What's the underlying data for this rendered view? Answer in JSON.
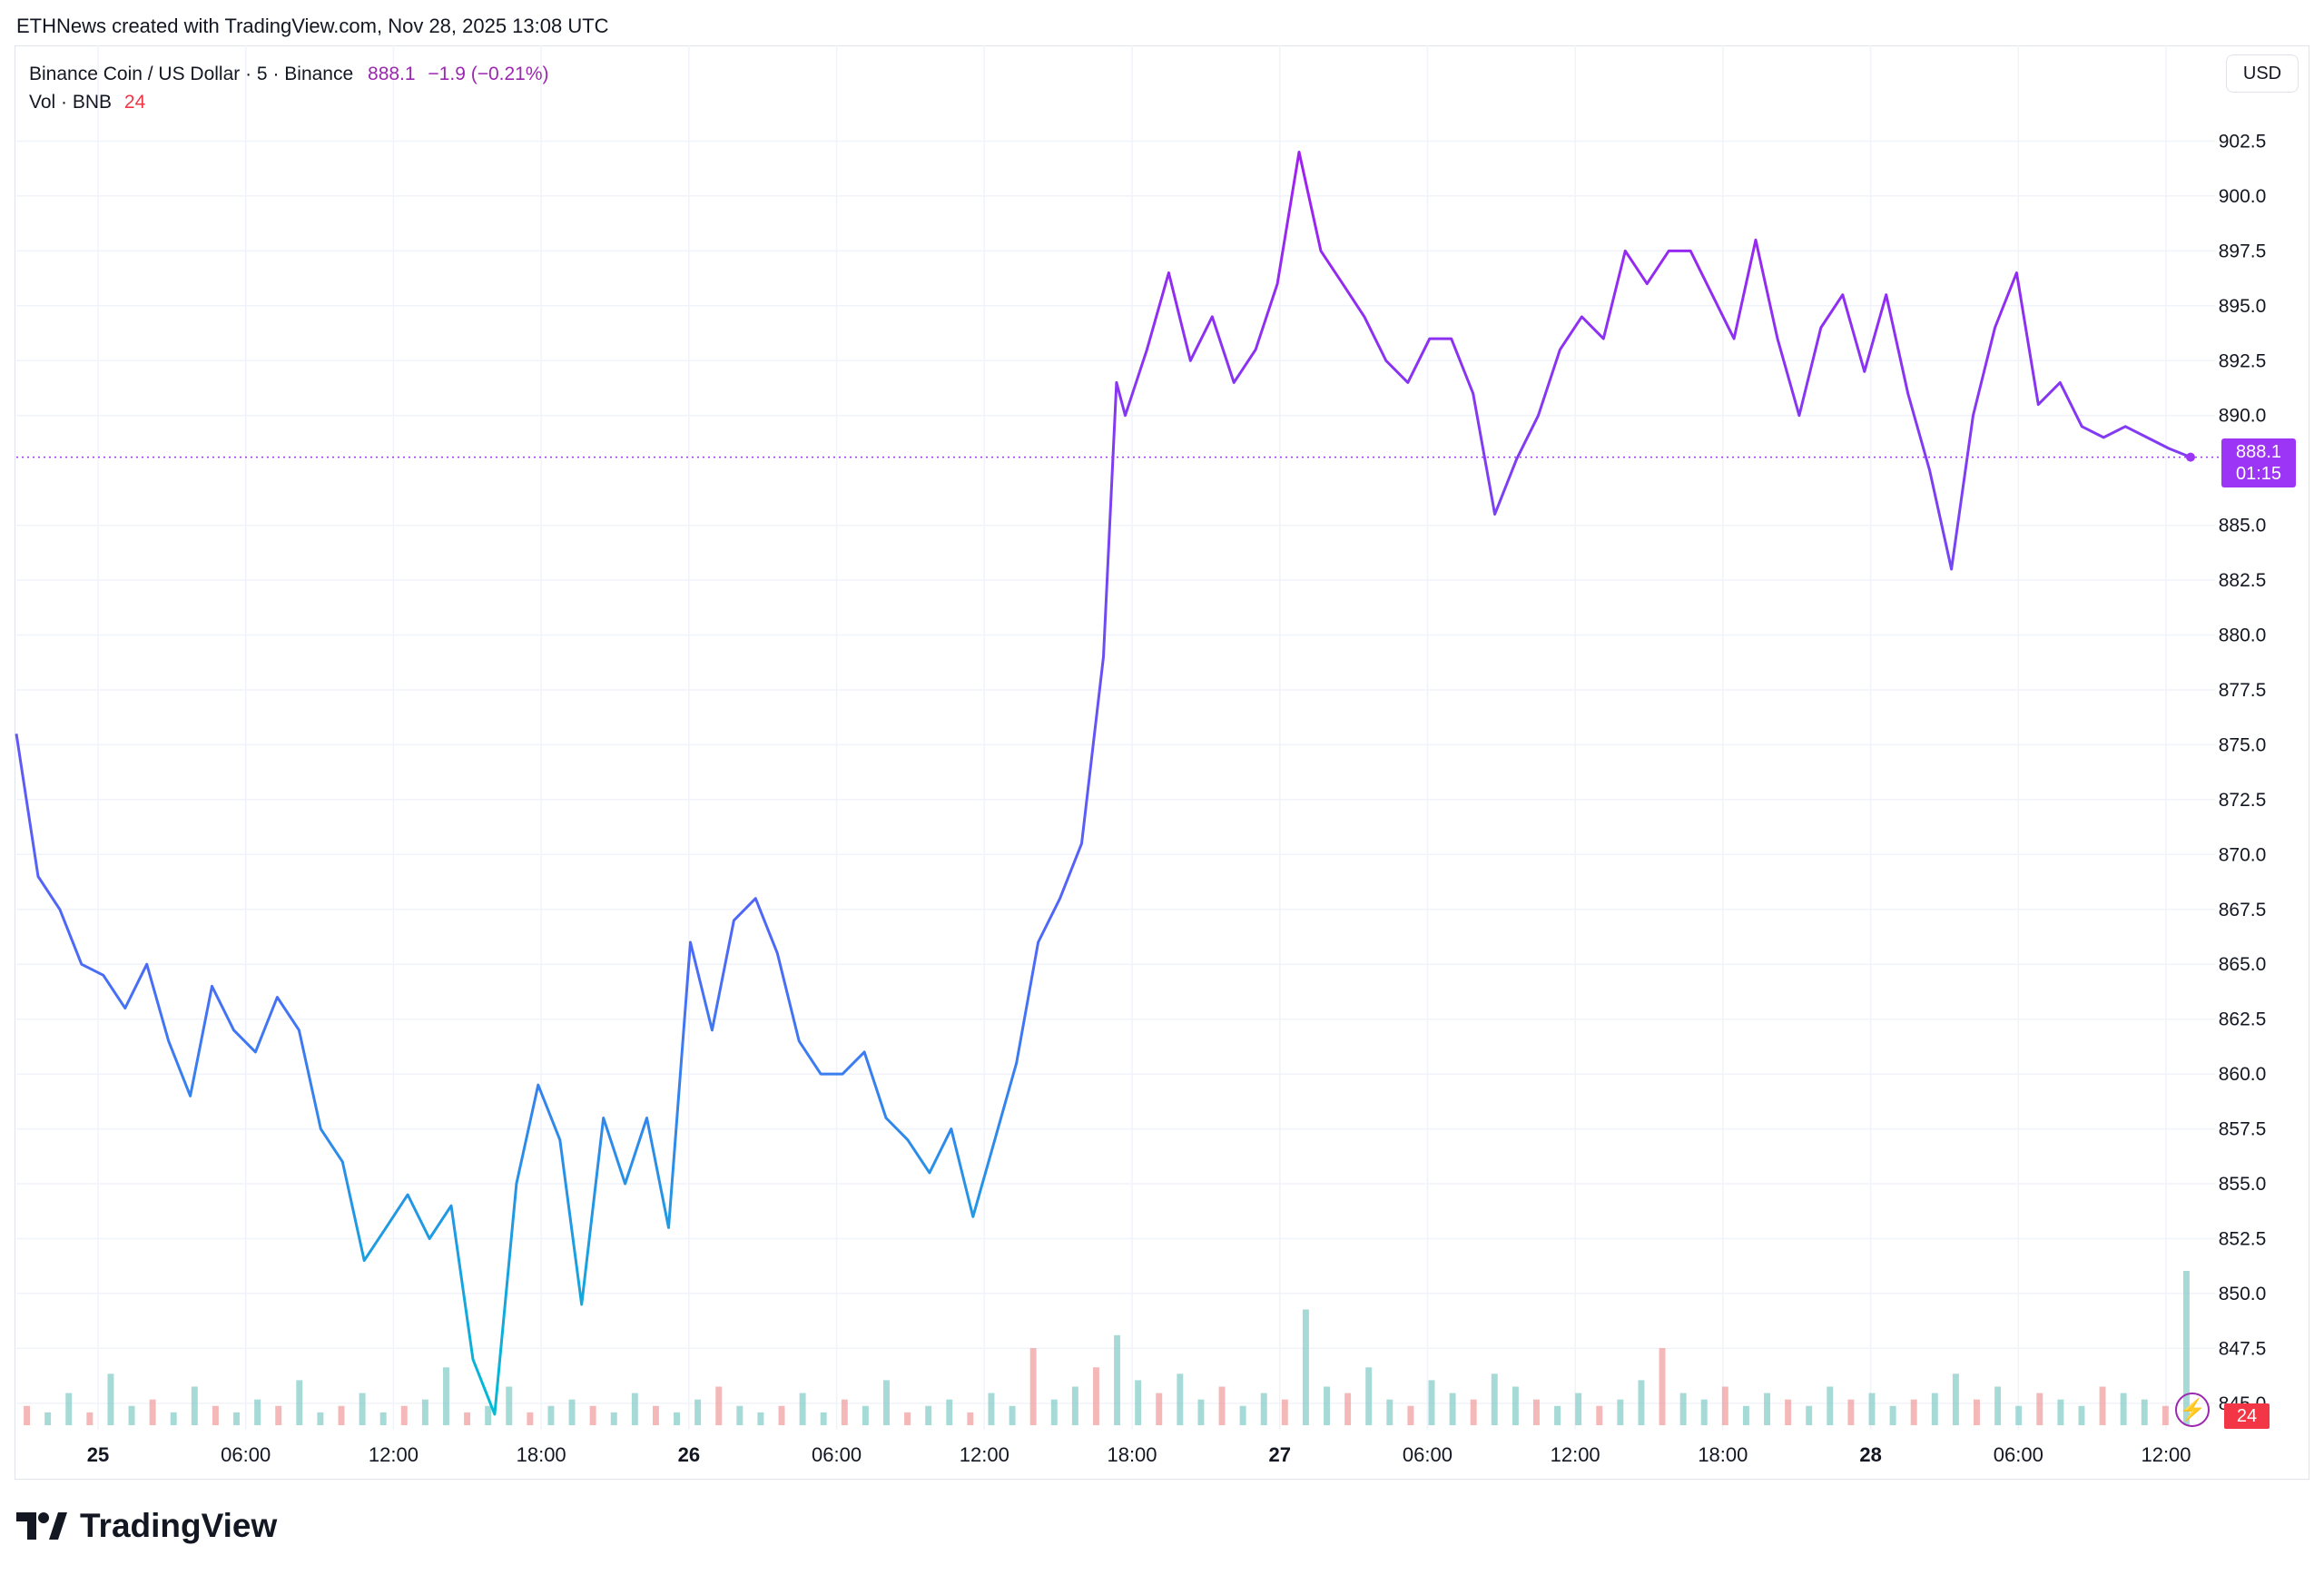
{
  "header": {
    "credit": "ETHNews created with TradingView.com, Nov 28, 2025 13:08 UTC"
  },
  "legend": {
    "symbol": "Binance Coin / US Dollar · 5 · Binance",
    "last": "888.1",
    "change": "−1.9 (−0.21%)",
    "volume_label": "Vol · BNB",
    "volume_value": "24"
  },
  "toolbar": {
    "currency_label": "USD"
  },
  "price_badge": {
    "price": "888.1",
    "countdown": "01:15"
  },
  "volume_badge": "24",
  "brand": {
    "name": "TradingView",
    "logo_icon": "tradingview-logo-icon"
  },
  "icons": {
    "alert": "lightning-icon"
  },
  "colors": {
    "line_start": "#00bcd4",
    "line_mid": "#4a6cf7",
    "line_end": "#a020f0",
    "vol_up": "#26a69a",
    "vol_down": "#ef5350",
    "badge": "#9c35f5"
  },
  "chart_data": {
    "type": "line",
    "series": [
      {
        "values_time_fraction": [
          0.0,
          0.01,
          0.02,
          0.03,
          0.04,
          0.05,
          0.06,
          0.07,
          0.08,
          0.09,
          0.1,
          0.11,
          0.12,
          0.13,
          0.14,
          0.15,
          0.16,
          0.17,
          0.18,
          0.19,
          0.2,
          0.21,
          0.22,
          0.23,
          0.24,
          0.25,
          0.26,
          0.27,
          0.28,
          0.29,
          0.3,
          0.31,
          0.32,
          0.33,
          0.34,
          0.35,
          0.36,
          0.37,
          0.38,
          0.39,
          0.4,
          0.41,
          0.42,
          0.43,
          0.44,
          0.45,
          0.46,
          0.47,
          0.48,
          0.49,
          0.5,
          0.506,
          0.51,
          0.52,
          0.53,
          0.54,
          0.55,
          0.56,
          0.57,
          0.58,
          0.59,
          0.6,
          0.61,
          0.62,
          0.63,
          0.64,
          0.65,
          0.66,
          0.67,
          0.68,
          0.69,
          0.7,
          0.71,
          0.72,
          0.73,
          0.74,
          0.75,
          0.76,
          0.77,
          0.78,
          0.79,
          0.8,
          0.81,
          0.82,
          0.83,
          0.84,
          0.85,
          0.86,
          0.87,
          0.88,
          0.89,
          0.9,
          0.91,
          0.92,
          0.93,
          0.94,
          0.95,
          0.96,
          0.97,
          0.98,
          0.99,
          1.0
        ],
        "values": [
          875.5,
          869.0,
          867.5,
          865.0,
          864.5,
          863.0,
          865.0,
          861.5,
          859.0,
          864.0,
          862.0,
          861.0,
          863.5,
          862.0,
          857.5,
          856.0,
          851.5,
          853.0,
          854.5,
          852.5,
          854.0,
          847.0,
          844.5,
          855.0,
          859.5,
          857.0,
          849.5,
          858.0,
          855.0,
          858.0,
          853.0,
          866.0,
          862.0,
          867.0,
          868.0,
          865.5,
          861.5,
          860.0,
          860.0,
          861.0,
          858.0,
          857.0,
          855.5,
          857.5,
          853.5,
          857.0,
          860.5,
          866.0,
          868.0,
          870.5,
          879.0,
          891.5,
          890.0,
          893.0,
          896.5,
          892.5,
          894.5,
          891.5,
          893.0,
          896.0,
          902.0,
          897.5,
          896.0,
          894.5,
          892.5,
          891.5,
          893.5,
          893.5,
          891.0,
          885.5,
          888.0,
          890.0,
          893.0,
          894.5,
          893.5,
          897.5,
          896.0,
          897.5,
          897.5,
          895.5,
          893.5,
          898.0,
          893.5,
          890.0,
          894.0,
          895.5,
          892.0,
          895.5,
          891.0,
          887.5,
          883.0,
          890.0,
          894.0,
          896.5,
          890.5,
          891.5,
          889.5,
          889.0,
          889.5,
          889.0,
          888.5,
          888.1
        ]
      }
    ],
    "x_tick_labels": [
      "25",
      "06:00",
      "12:00",
      "18:00",
      "26",
      "06:00",
      "12:00",
      "18:00",
      "27",
      "06:00",
      "12:00",
      "18:00",
      "28",
      "06:00",
      "12:00"
    ],
    "y_tick_labels": [
      "902.5",
      "900.0",
      "897.5",
      "895.0",
      "892.5",
      "890.0",
      "885.0",
      "882.5",
      "880.0",
      "877.5",
      "875.0",
      "872.5",
      "870.0",
      "867.5",
      "865.0",
      "862.5",
      "860.0",
      "857.5",
      "855.0",
      "852.5",
      "850.0",
      "847.5",
      "845.0"
    ],
    "ylim": [
      844,
      905
    ],
    "last_price": 888.1,
    "grid": true,
    "volume": {
      "unit": "BNB",
      "bars": [
        3,
        2,
        5,
        2,
        8,
        3,
        4,
        2,
        6,
        3,
        2,
        4,
        3,
        7,
        2,
        3,
        5,
        2,
        3,
        4,
        9,
        2,
        3,
        6,
        2,
        3,
        4,
        3,
        2,
        5,
        3,
        2,
        4,
        6,
        3,
        2,
        3,
        5,
        2,
        4,
        3,
        7,
        2,
        3,
        4,
        2,
        5,
        3,
        12,
        4,
        6,
        9,
        14,
        7,
        5,
        8,
        4,
        6,
        3,
        5,
        4,
        18,
        6,
        5,
        9,
        4,
        3,
        7,
        5,
        4,
        8,
        6,
        4,
        3,
        5,
        3,
        4,
        7,
        12,
        5,
        4,
        6,
        3,
        5,
        4,
        3,
        6,
        4,
        5,
        3,
        4,
        5,
        8,
        4,
        6,
        3,
        5,
        4,
        3,
        6,
        5,
        4,
        3,
        24
      ]
    }
  }
}
